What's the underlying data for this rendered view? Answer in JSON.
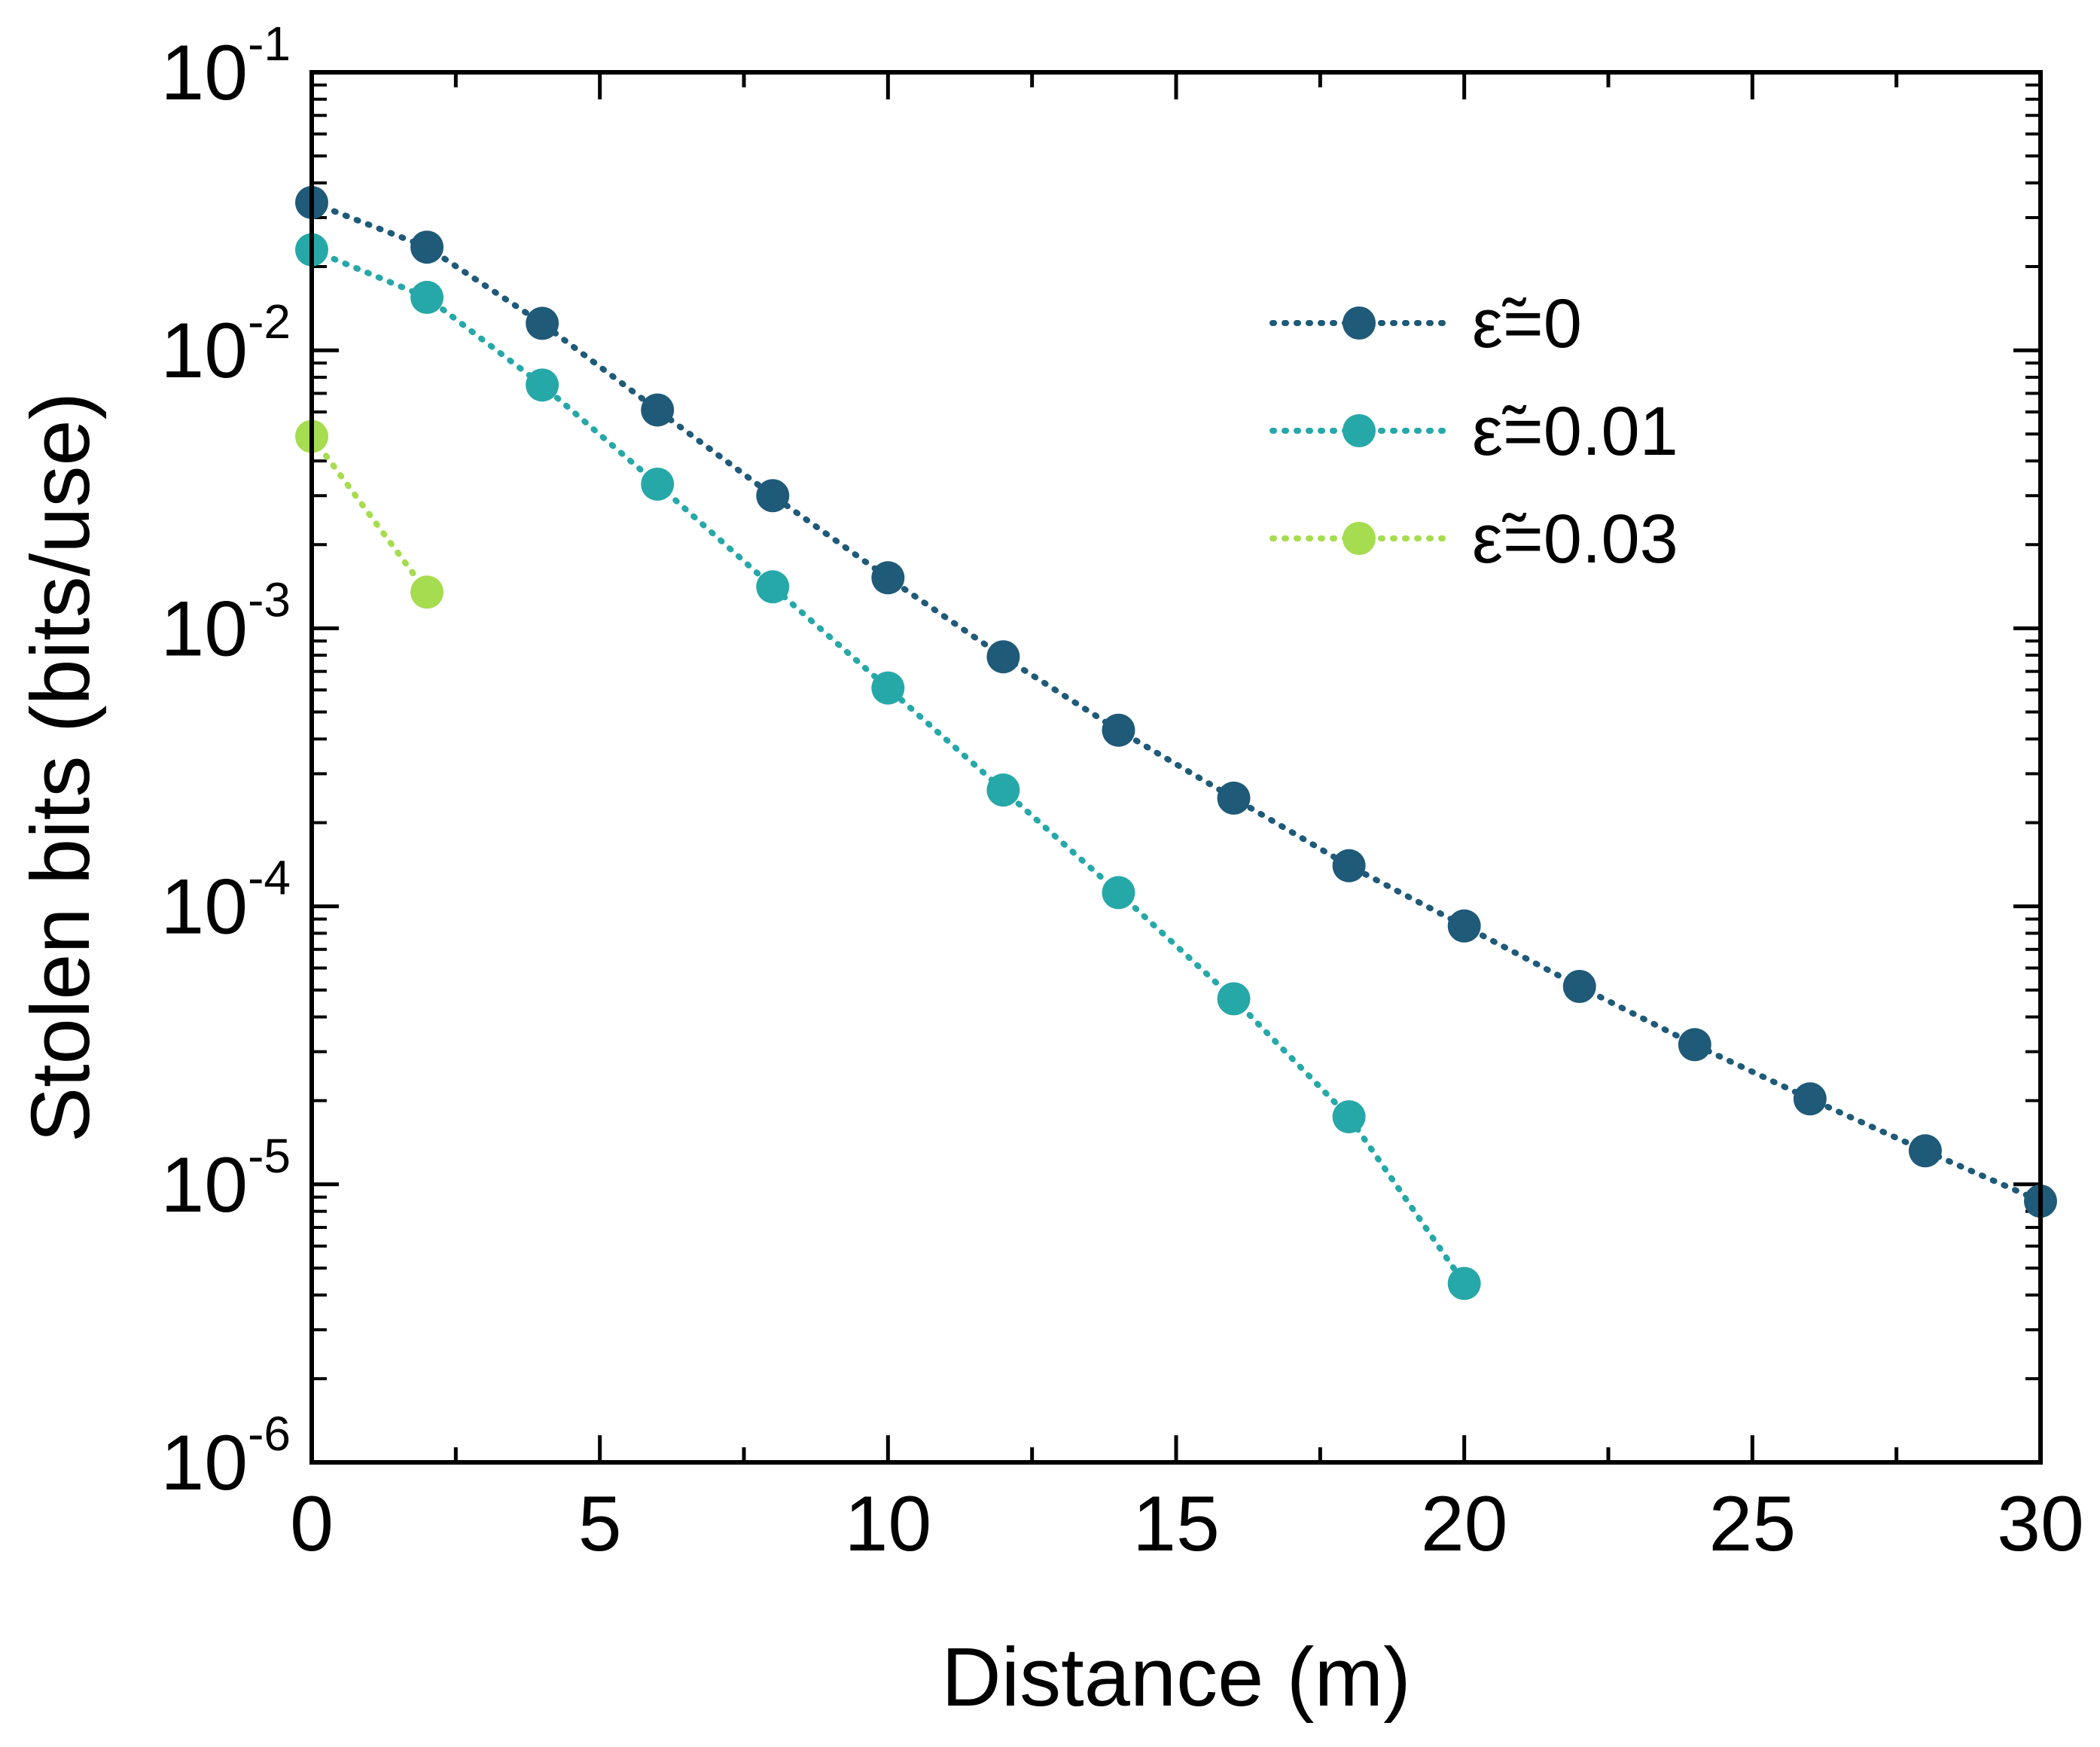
{
  "chart_data": {
    "type": "scatter",
    "xlabel": "Distance (m)",
    "ylabel": "Stolen bits (bits/use)",
    "xlim": [
      0,
      30
    ],
    "ylim": [
      1e-06,
      0.1
    ],
    "yscale": "log",
    "x_ticks": [
      "0",
      "5",
      "10",
      "15",
      "20",
      "25",
      "30"
    ],
    "y_ticks": [
      {
        "base": "10",
        "exp": "-6"
      },
      {
        "base": "10",
        "exp": "-5"
      },
      {
        "base": "10",
        "exp": "-4"
      },
      {
        "base": "10",
        "exp": "-3"
      },
      {
        "base": "10",
        "exp": "-2"
      },
      {
        "base": "10",
        "exp": "-1"
      }
    ],
    "legend_position": "top-right",
    "series": [
      {
        "name": "ε̃=0",
        "symbol": "ε̃",
        "label_value": "=0",
        "color": "#1f5a78",
        "x": [
          0,
          2,
          4,
          6,
          8,
          10,
          12,
          14,
          16,
          18,
          20,
          22,
          24,
          26,
          28,
          30
        ],
        "y": [
          0.034,
          0.0235,
          0.0125,
          0.0061,
          0.003,
          0.00152,
          0.00079,
          0.00043,
          0.000245,
          0.00014,
          8.5e-05,
          5.15e-05,
          3.18e-05,
          2.03e-05,
          1.32e-05,
          8.7e-06
        ]
      },
      {
        "name": "ε̃=0.01",
        "symbol": "ε̃",
        "label_value": "=0.01",
        "color": "#27a8a8",
        "x": [
          0,
          2,
          4,
          6,
          8,
          10,
          12,
          14,
          16,
          18,
          20
        ],
        "y": [
          0.023,
          0.0155,
          0.0075,
          0.0033,
          0.00141,
          0.00061,
          0.000262,
          0.000112,
          4.65e-05,
          1.75e-05,
          4.4e-06
        ]
      },
      {
        "name": "ε̃=0.03",
        "symbol": "ε̃",
        "label_value": "=0.03",
        "color": "#a6dc50",
        "x": [
          0,
          2
        ],
        "y": [
          0.0049,
          0.00135
        ]
      }
    ]
  }
}
